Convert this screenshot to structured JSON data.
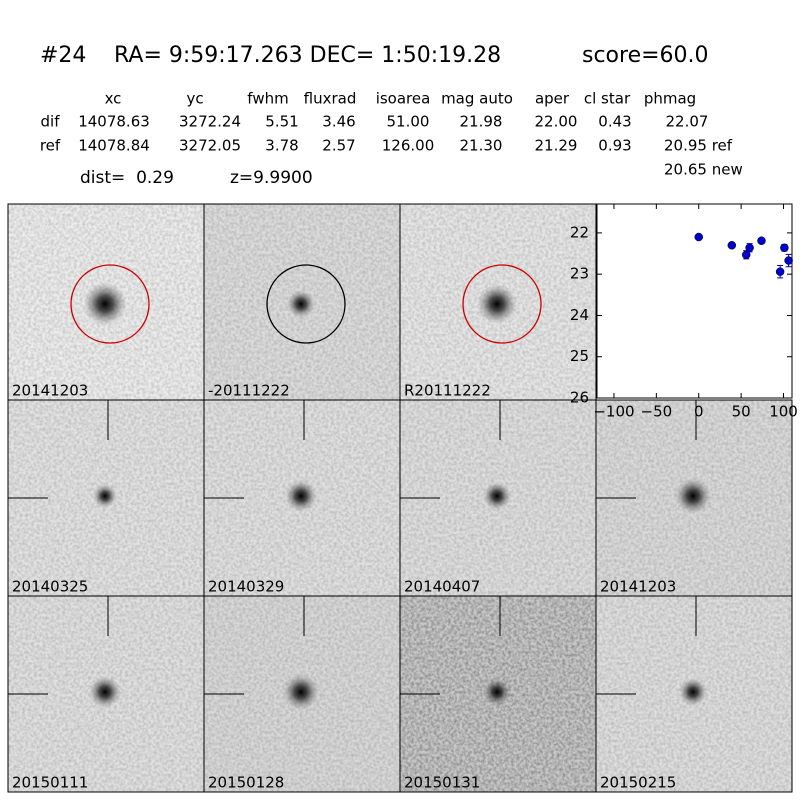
{
  "header": {
    "id": "#24",
    "coords": "RA= 9:59:17.263 DEC= 1:50:19.28",
    "score": "score=60.0"
  },
  "table": {
    "columns": [
      "xc",
      "yc",
      "fwhm",
      "fluxrad",
      "isoarea",
      "mag auto",
      "aper",
      "cl star",
      "phmag"
    ],
    "rows": [
      [
        "dif",
        "14078.63",
        "3272.24",
        "5.51",
        "3.46",
        "51.00",
        "21.98",
        "22.00",
        "0.43",
        "22.07"
      ],
      [
        "ref",
        "14078.84",
        "3272.05",
        "3.78",
        "2.57",
        "126.00",
        "21.30",
        "21.29",
        "0.93",
        "20.95 ref"
      ]
    ],
    "extra": "20.65 new"
  },
  "info": {
    "dist": "dist=  0.29",
    "z": "z=9.9900"
  },
  "stamps": [
    {
      "label": "20141203",
      "color": "#000000",
      "marker": "circle",
      "marker_color": "#cc0000"
    },
    {
      "label": "-20111222",
      "color": "#000000",
      "marker": "circle",
      "marker_color": "#000000"
    },
    {
      "label": "R20111222",
      "color": "#000000",
      "marker": "circle",
      "marker_color": "#cc0000"
    },
    {
      "label": "20140325",
      "color": "#000000",
      "marker": "crosshair"
    },
    {
      "label": "20140329",
      "color": "#000000",
      "marker": "crosshair"
    },
    {
      "label": "20140407",
      "color": "#000000",
      "marker": "crosshair"
    },
    {
      "label": "20141203",
      "color": "#ff0000",
      "marker": "crosshair"
    },
    {
      "label": "20150111",
      "color": "#000000",
      "marker": "crosshair"
    },
    {
      "label": "20150128",
      "color": "#000000",
      "marker": "crosshair"
    },
    {
      "label": "20150131",
      "color": "#000000",
      "marker": "crosshair"
    },
    {
      "label": "20150215",
      "color": "#000000",
      "marker": "crosshair"
    }
  ],
  "chart_data": {
    "type": "errorbar",
    "x": [
      0,
      39,
      56,
      60,
      74,
      96,
      101,
      106
    ],
    "values": [
      22.1,
      22.3,
      22.53,
      22.36,
      22.19,
      22.94,
      22.36,
      22.67
    ],
    "errors": [
      0.05,
      0.06,
      0.1,
      0.1,
      0.06,
      0.15,
      0.08,
      0.15
    ],
    "color": "#0000cc",
    "xlim": [
      -120,
      110
    ],
    "ylim": [
      26,
      21.3
    ],
    "xticks": [
      {
        "value": -100,
        "label": "−100"
      },
      {
        "value": -50,
        "label": "−50"
      },
      0,
      50,
      100
    ],
    "yticks": [
      22,
      23,
      24,
      25,
      26
    ]
  }
}
